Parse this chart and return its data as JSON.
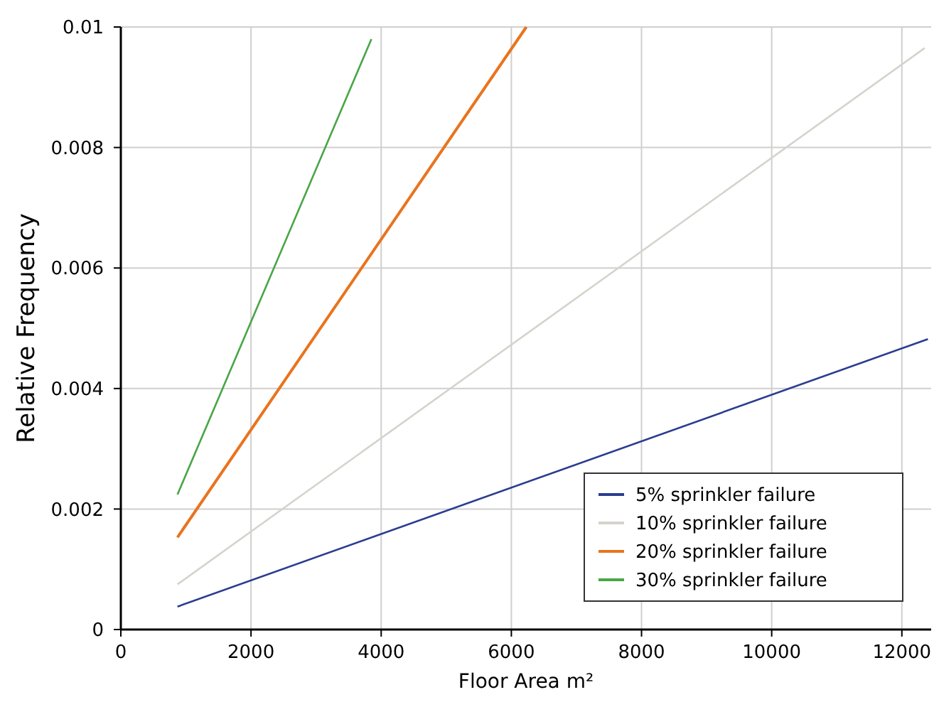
{
  "chart_data": {
    "type": "line",
    "xlabel": "Floor Area m²",
    "ylabel": "Relative Frequency",
    "xlim": [
      0,
      12450
    ],
    "xticks": [
      0,
      2000,
      4000,
      6000,
      8000,
      10000,
      12000
    ],
    "ylim": [
      0,
      0.01
    ],
    "yticks": [
      0,
      0.002,
      0.004,
      0.006,
      0.008,
      0.01
    ],
    "grid": true,
    "legend": "bottom right",
    "series": [
      {
        "name": "5% sprinkler failure",
        "color": "#2a3d8f",
        "x": [
          870,
          12400
        ],
        "values": [
          0.00038,
          0.00482
        ]
      },
      {
        "name": "10% sprinkler failure",
        "color": "#d5d3cc",
        "x": [
          870,
          12350
        ],
        "values": [
          0.00075,
          0.00965
        ]
      },
      {
        "name": "20% sprinkler failure",
        "color": "#e8741e",
        "x": [
          870,
          6230
        ],
        "values": [
          0.00153,
          0.01
        ]
      },
      {
        "name": "30% sprinkler failure",
        "color": "#4aa547",
        "x": [
          870,
          3850
        ],
        "values": [
          0.00224,
          0.0098
        ]
      }
    ]
  }
}
